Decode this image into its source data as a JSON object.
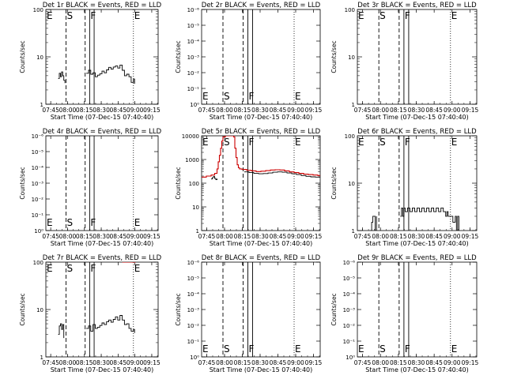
{
  "figure": {
    "xlabel": "Start Time (07-Dec-15 07:40:40)",
    "ylabel": "Counts/sec",
    "x_ticks": [
      "07:45",
      "08:00",
      "08:15",
      "08:30",
      "08:45",
      "09:00",
      "09:15"
    ]
  },
  "colors": {
    "events": "#000000",
    "lld": "#cc0000"
  },
  "chart_data": [
    {
      "type": "line",
      "title": "Det 1r BLACK = Events, RED = LLD",
      "xlabel": "Start Time (07-Dec-15 07:40:40)",
      "ylabel": "Counts/sec",
      "x_unit": "minutes after 07:40:40",
      "xlim": [
        0,
        100
      ],
      "ylim": [
        1,
        100
      ],
      "y_scale": "log",
      "y_ticks": [
        "1",
        "10",
        "100"
      ],
      "markers": [
        {
          "label": "E",
          "x": 1,
          "style": "dotted"
        },
        {
          "label": "S",
          "x": 18,
          "style": "dashed"
        },
        {
          "label": "",
          "x": 35,
          "style": "dashed"
        },
        {
          "label": "F",
          "x": 39,
          "style": "solid"
        },
        {
          "label": "",
          "x": 43,
          "style": "solid"
        },
        {
          "label": "E",
          "x": 78,
          "style": "dotted"
        }
      ],
      "series": [
        {
          "color": "#000000",
          "x": [
            11,
            12,
            13,
            14,
            15,
            16,
            17
          ],
          "y": [
            3.5,
            4.5,
            3.8,
            4.8,
            4.0,
            3.2,
            2.8
          ]
        },
        {
          "color": "#000000",
          "x": [
            36,
            38,
            40,
            42,
            44,
            46,
            48,
            50,
            52,
            54,
            56,
            58,
            60,
            62,
            64,
            66,
            68,
            70,
            72,
            74,
            76,
            78,
            79
          ],
          "y": [
            4.5,
            5.2,
            4.3,
            4.6,
            3.8,
            4.1,
            4.4,
            5.0,
            4.6,
            5.3,
            6.0,
            5.5,
            6.1,
            6.4,
            5.8,
            6.7,
            5.2,
            4.0,
            4.3,
            3.8,
            2.9,
            3.4,
            2.7
          ]
        }
      ]
    },
    {
      "type": "line",
      "title": "Det 2r BLACK = Events, RED = LLD",
      "xlabel": "Start Time (07-Dec-15 07:40:40)",
      "ylabel": "Counts/sec",
      "x_unit": "minutes after 07:40:40",
      "xlim": [
        0,
        100
      ],
      "ylim": [
        -6,
        -1
      ],
      "y_scale": "log",
      "y_ticks": [
        "10⁰",
        "10⁻¹",
        "10⁻²",
        "10⁻³",
        "10⁻⁴",
        "10⁻⁵",
        "10⁻⁶"
      ],
      "markers": [
        {
          "label": "E",
          "x": 1,
          "style": "dotted"
        },
        {
          "label": "S",
          "x": 18,
          "style": "dashed"
        },
        {
          "label": "",
          "x": 35,
          "style": "dashed"
        },
        {
          "label": "F",
          "x": 39,
          "style": "solid"
        },
        {
          "label": "",
          "x": 43,
          "style": "solid"
        },
        {
          "label": "E",
          "x": 78,
          "style": "dotted"
        }
      ],
      "series": []
    },
    {
      "type": "line",
      "title": "Det 3r BLACK = Events, RED = LLD",
      "xlabel": "Start Time (07-Dec-15 07:40:40)",
      "ylabel": "Counts/sec",
      "x_unit": "minutes after 07:40:40",
      "xlim": [
        0,
        100
      ],
      "ylim": [
        1,
        100
      ],
      "y_scale": "log",
      "y_ticks": [
        "1",
        "10",
        "100"
      ],
      "markers": [
        {
          "label": "E",
          "x": 1,
          "style": "dotted"
        },
        {
          "label": "S",
          "x": 18,
          "style": "dashed"
        },
        {
          "label": "",
          "x": 35,
          "style": "dashed"
        },
        {
          "label": "F",
          "x": 39,
          "style": "solid"
        },
        {
          "label": "",
          "x": 43,
          "style": "solid"
        },
        {
          "label": "E",
          "x": 78,
          "style": "dotted"
        }
      ],
      "series": []
    },
    {
      "type": "line",
      "title": "Det 4r BLACK = Events, RED = LLD",
      "xlabel": "Start Time (07-Dec-15 07:40:40)",
      "ylabel": "Counts/sec",
      "x_unit": "minutes after 07:40:40",
      "xlim": [
        0,
        100
      ],
      "ylim": [
        -6,
        -1
      ],
      "y_scale": "log",
      "y_ticks": [
        "10⁰",
        "10⁻¹",
        "10⁻²",
        "10⁻³",
        "10⁻⁴",
        "10⁻⁵",
        "10⁻⁶"
      ],
      "markers": [
        {
          "label": "E",
          "x": 1,
          "style": "dotted"
        },
        {
          "label": "S",
          "x": 18,
          "style": "dashed"
        },
        {
          "label": "",
          "x": 35,
          "style": "dashed"
        },
        {
          "label": "F",
          "x": 39,
          "style": "solid"
        },
        {
          "label": "",
          "x": 43,
          "style": "solid"
        },
        {
          "label": "E",
          "x": 78,
          "style": "dotted"
        }
      ],
      "series": []
    },
    {
      "type": "line",
      "title": "Det 5r BLACK = Events, RED = LLD",
      "xlabel": "Start Time (07-Dec-15 07:40:40)",
      "ylabel": "Counts/sec",
      "x_unit": "minutes after 07:40:40",
      "xlim": [
        0,
        100
      ],
      "ylim": [
        1,
        10000
      ],
      "y_scale": "log",
      "y_ticks": [
        "1",
        "10",
        "100",
        "1000",
        "10000"
      ],
      "markers": [
        {
          "label": "E",
          "x": 1,
          "style": "dotted"
        },
        {
          "label": "S",
          "x": 18,
          "style": "dashed"
        },
        {
          "label": "",
          "x": 35,
          "style": "dashed"
        },
        {
          "label": "F",
          "x": 39,
          "style": "solid"
        },
        {
          "label": "",
          "x": 43,
          "style": "solid"
        },
        {
          "label": "E",
          "x": 78,
          "style": "dotted"
        }
      ],
      "series": [
        {
          "color": "#cc0000",
          "x": [
            0,
            4,
            8,
            11,
            13,
            14,
            15,
            16,
            17,
            18,
            20,
            22,
            24,
            26,
            27,
            28,
            29,
            30,
            31,
            32,
            34,
            38,
            42,
            46,
            50,
            54,
            58,
            62,
            66,
            70,
            74,
            78,
            82,
            86,
            90,
            94,
            98,
            100
          ],
          "y": [
            180,
            200,
            220,
            260,
            400,
            800,
            1500,
            3000,
            6000,
            9000,
            10000,
            10000,
            10000,
            10000,
            9000,
            3000,
            1200,
            600,
            450,
            400,
            380,
            350,
            330,
            310,
            320,
            340,
            360,
            370,
            360,
            330,
            300,
            280,
            260,
            240,
            230,
            220,
            210,
            210
          ]
        },
        {
          "color": "#000000",
          "x": [
            8,
            9,
            10,
            11,
            12,
            13
          ],
          "y": [
            150,
            170,
            190,
            160,
            140,
            155
          ]
        },
        {
          "color": "#000000",
          "x": [
            36,
            40,
            44,
            48,
            52,
            56,
            60,
            64,
            68,
            72,
            76,
            80,
            84,
            88,
            92,
            96,
            100
          ],
          "y": [
            300,
            280,
            260,
            250,
            255,
            270,
            290,
            300,
            290,
            270,
            250,
            230,
            210,
            195,
            185,
            180,
            175
          ]
        }
      ]
    },
    {
      "type": "line",
      "title": "Det 6r BLACK = Events, RED = LLD",
      "xlabel": "Start Time (07-Dec-15 07:40:40)",
      "ylabel": "Counts/sec",
      "x_unit": "minutes after 07:40:40",
      "xlim": [
        0,
        100
      ],
      "ylim": [
        1,
        100
      ],
      "y_scale": "log",
      "y_ticks": [
        "1",
        "10",
        "100"
      ],
      "markers": [
        {
          "label": "E",
          "x": 1,
          "style": "dotted"
        },
        {
          "label": "S",
          "x": 18,
          "style": "dashed"
        },
        {
          "label": "",
          "x": 35,
          "style": "dashed"
        },
        {
          "label": "F",
          "x": 39,
          "style": "solid"
        },
        {
          "label": "",
          "x": 43,
          "style": "solid"
        },
        {
          "label": "E",
          "x": 78,
          "style": "dotted"
        }
      ],
      "series": [
        {
          "color": "#000000",
          "x": [
            11,
            12,
            13,
            14,
            15,
            16
          ],
          "y": [
            1.0,
            1.5,
            2.0,
            2.0,
            1.0,
            2.0
          ]
        },
        {
          "color": "#000000",
          "x": [
            36,
            37,
            38,
            39,
            40,
            42,
            44,
            46,
            48,
            50,
            52,
            54,
            56,
            58,
            60,
            62,
            64,
            66,
            68,
            70,
            72,
            74,
            75,
            76,
            78,
            80,
            82,
            83,
            84,
            85
          ],
          "y": [
            2.0,
            3.0,
            2.0,
            3.0,
            2.5,
            3.0,
            2.5,
            3.0,
            2.5,
            3.0,
            2.5,
            3.0,
            2.5,
            3.0,
            2.5,
            3.0,
            2.5,
            3.0,
            2.5,
            3.0,
            2.5,
            2.0,
            2.5,
            2.0,
            2.0,
            1.5,
            2.0,
            1.0,
            2.0,
            1.0
          ]
        }
      ]
    },
    {
      "type": "line",
      "title": "Det 7r BLACK = Events, RED = LLD",
      "xlabel": "Start Time (07-Dec-15 07:40:40)",
      "ylabel": "Counts/sec",
      "x_unit": "minutes after 07:40:40",
      "xlim": [
        0,
        100
      ],
      "ylim": [
        1,
        100
      ],
      "y_scale": "log",
      "y_ticks": [
        "1",
        "10",
        "100"
      ],
      "markers": [
        {
          "label": "E",
          "x": 1,
          "style": "dotted"
        },
        {
          "label": "S",
          "x": 18,
          "style": "dashed"
        },
        {
          "label": "",
          "x": 35,
          "style": "dashed"
        },
        {
          "label": "F",
          "x": 39,
          "style": "solid"
        },
        {
          "label": "",
          "x": 43,
          "style": "solid"
        },
        {
          "label": "E",
          "x": 78,
          "style": "dotted"
        }
      ],
      "series": [
        {
          "color": "#cc0000",
          "x": [
            68,
            70,
            72,
            74,
            76,
            78,
            80
          ],
          "y": [
            100,
            100,
            100,
            100,
            100,
            100,
            100
          ]
        },
        {
          "color": "#000000",
          "x": [
            11,
            12,
            13,
            14,
            15,
            16
          ],
          "y": [
            3.0,
            4.5,
            5.0,
            3.8,
            4.8,
            2.5
          ]
        },
        {
          "color": "#000000",
          "x": [
            36,
            38,
            40,
            42,
            44,
            46,
            48,
            50,
            52,
            54,
            56,
            58,
            60,
            62,
            64,
            66,
            68,
            70,
            72,
            74,
            76,
            78,
            79
          ],
          "y": [
            4.0,
            4.5,
            3.5,
            4.8,
            4.0,
            4.2,
            4.6,
            5.2,
            4.8,
            5.5,
            6.0,
            5.4,
            6.2,
            7.0,
            6.0,
            7.5,
            6.0,
            4.8,
            5.0,
            4.0,
            3.5,
            3.8,
            3.2
          ]
        }
      ]
    },
    {
      "type": "line",
      "title": "Det 8r BLACK = Events, RED = LLD",
      "xlabel": "Start Time (07-Dec-15 07:40:40)",
      "ylabel": "Counts/sec",
      "x_unit": "minutes after 07:40:40",
      "xlim": [
        0,
        100
      ],
      "ylim": [
        -6,
        -1
      ],
      "y_scale": "log",
      "y_ticks": [
        "10⁰",
        "10⁻¹",
        "10⁻²",
        "10⁻³",
        "10⁻⁴",
        "10⁻⁵",
        "10⁻⁶"
      ],
      "markers": [
        {
          "label": "E",
          "x": 1,
          "style": "dotted"
        },
        {
          "label": "S",
          "x": 18,
          "style": "dashed"
        },
        {
          "label": "",
          "x": 35,
          "style": "dashed"
        },
        {
          "label": "F",
          "x": 39,
          "style": "solid"
        },
        {
          "label": "",
          "x": 43,
          "style": "solid"
        },
        {
          "label": "E",
          "x": 78,
          "style": "dotted"
        }
      ],
      "series": []
    },
    {
      "type": "line",
      "title": "Det 9r BLACK = Events, RED = LLD",
      "xlabel": "Start Time (07-Dec-15 07:40:40)",
      "ylabel": "Counts/sec",
      "x_unit": "minutes after 07:40:40",
      "xlim": [
        0,
        100
      ],
      "ylim": [
        -6,
        -1
      ],
      "y_scale": "log",
      "y_ticks": [
        "10⁰",
        "10⁻¹",
        "10⁻²",
        "10⁻³",
        "10⁻⁴",
        "10⁻⁵",
        "10⁻⁶"
      ],
      "markers": [
        {
          "label": "E",
          "x": 1,
          "style": "dotted"
        },
        {
          "label": "S",
          "x": 18,
          "style": "dashed"
        },
        {
          "label": "",
          "x": 35,
          "style": "dashed"
        },
        {
          "label": "F",
          "x": 39,
          "style": "solid"
        },
        {
          "label": "",
          "x": 43,
          "style": "solid"
        },
        {
          "label": "E",
          "x": 78,
          "style": "dotted"
        }
      ],
      "series": []
    }
  ]
}
